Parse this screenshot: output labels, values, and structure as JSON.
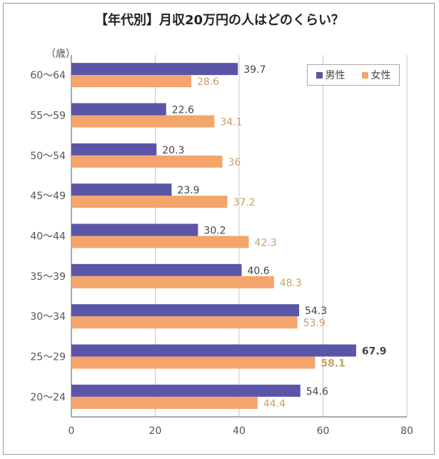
{
  "colors": {
    "male": "#5b55a8",
    "female": "#f4a56c",
    "male_text": "#444444",
    "female_text": "#c9a063"
  },
  "chart_data": {
    "type": "bar",
    "orientation": "horizontal",
    "title": "【年代別】月収20万円の人はどのくらい？",
    "ylabel": "（歳）",
    "xlabel": "",
    "xlim": [
      0,
      80
    ],
    "xticks": [
      0,
      20,
      40,
      60,
      80
    ],
    "grid": true,
    "legend_position": "top-right",
    "categories": [
      "60～64",
      "55～59",
      "50～54",
      "45～49",
      "40～44",
      "35～39",
      "30～34",
      "25～29",
      "20～24"
    ],
    "series": [
      {
        "name": "男性",
        "values": [
          39.7,
          22.6,
          20.3,
          23.9,
          30.2,
          40.6,
          54.3,
          67.9,
          54.6
        ]
      },
      {
        "name": "女性",
        "values": [
          28.6,
          34.1,
          36,
          37.2,
          42.3,
          48.3,
          53.9,
          58.1,
          44.4
        ]
      }
    ],
    "value_labels": {
      "male": [
        "39.7",
        "22.6",
        "20.3",
        "23.9",
        "30.2",
        "40.6",
        "54.3",
        "67.9",
        "54.6"
      ],
      "female": [
        "28.6",
        "34.1",
        "36",
        "37.2",
        "42.3",
        "48.3",
        "53.9",
        "58.1",
        "44.4"
      ]
    },
    "emphasized_category": "25～29"
  }
}
